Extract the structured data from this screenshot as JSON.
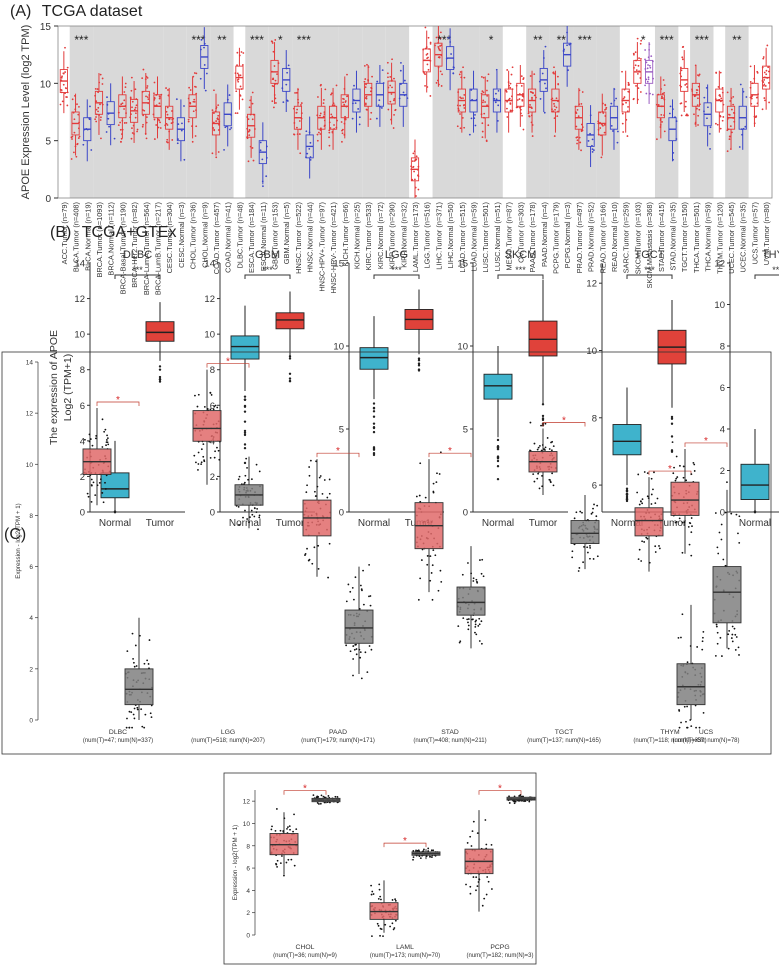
{
  "panels": {
    "A": {
      "letter": "(A)",
      "title": "TCGA dataset"
    },
    "B": {
      "letter": "(B)",
      "title": "TCGA+GTEx"
    },
    "C": {
      "letter": "(C)"
    }
  },
  "colors": {
    "tumor_red": "#e23b3b",
    "normal_blue": "#3b46c8",
    "metastasis_purple": "#9a5cc2",
    "gtex_tumor": "#e0423a",
    "gtex_normal": "#3fb3cc",
    "gepia_tumor": "#e06a6a",
    "gepia_normal": "#808080",
    "shade": "#d9d9d9"
  },
  "chart_data": [
    {
      "type": "box",
      "panel": "A",
      "ylabel": "APOE Expression Level (log2 TPM)",
      "ylim": [
        0,
        15
      ],
      "yticks": [
        0,
        5,
        10,
        15
      ],
      "categories": [
        {
          "label": "ACC.Tumor (n=79)",
          "kind": "T",
          "median": 10.2
        },
        {
          "label": "BLCA.Tumor (n=408)",
          "kind": "T",
          "median": 6.5,
          "sig": "***"
        },
        {
          "label": "BLCA.Normal (n=19)",
          "kind": "N",
          "median": 6.0
        },
        {
          "label": "BRCA.Tumor (n=1093)",
          "kind": "T",
          "median": 8.3
        },
        {
          "label": "BRCA.Normal (n=112)",
          "kind": "N",
          "median": 7.4
        },
        {
          "label": "BRCA-Basal.Tumor (n=190)",
          "kind": "T",
          "median": 8.0
        },
        {
          "label": "BRCA-Her2.Tumor (n=82)",
          "kind": "T",
          "median": 7.6
        },
        {
          "label": "BRCA-LumA.Tumor (n=564)",
          "kind": "T",
          "median": 8.3
        },
        {
          "label": "BRCA-LumB.Tumor (n=217)",
          "kind": "T",
          "median": 8.0
        },
        {
          "label": "CESC.Tumor (n=304)",
          "kind": "T",
          "median": 7.0
        },
        {
          "label": "CESC.Normal (n=3)",
          "kind": "N",
          "median": 6.0
        },
        {
          "label": "CHOL.Tumor (n=36)",
          "kind": "T",
          "median": 8.0,
          "sig": "***"
        },
        {
          "label": "CHOL.Normal (n=9)",
          "kind": "N",
          "median": 12.3
        },
        {
          "label": "COAD.Tumor (n=457)",
          "kind": "T",
          "median": 6.5,
          "sig": "**"
        },
        {
          "label": "COAD.Normal (n=41)",
          "kind": "N",
          "median": 7.3
        },
        {
          "label": "DLBC.Tumor (n=48)",
          "kind": "T",
          "median": 10.5
        },
        {
          "label": "ESCA.Tumor (n=184)",
          "kind": "T",
          "median": 6.3,
          "sig": "***"
        },
        {
          "label": "ESCA.Normal (n=11)",
          "kind": "N",
          "median": 4.0
        },
        {
          "label": "GBM.Tumor (n=153)",
          "kind": "T",
          "median": 11.0,
          "sig": "*"
        },
        {
          "label": "GBM.Normal (n=5)",
          "kind": "N",
          "median": 10.3
        },
        {
          "label": "HNSC.Tumor (n=522)",
          "kind": "T",
          "median": 7.0,
          "sig": "***"
        },
        {
          "label": "HNSC.Normal (n=44)",
          "kind": "N",
          "median": 4.5
        },
        {
          "label": "HNSC-HPV+.Tumor (n=97)",
          "kind": "T",
          "median": 7.0
        },
        {
          "label": "HNSC-HPV-.Tumor (n=421)",
          "kind": "T",
          "median": 7.0
        },
        {
          "label": "KICH.Tumor (n=66)",
          "kind": "T",
          "median": 8.0
        },
        {
          "label": "KICH.Normal (n=25)",
          "kind": "N",
          "median": 8.5
        },
        {
          "label": "KIRC.Tumor (n=533)",
          "kind": "T",
          "median": 9.0
        },
        {
          "label": "KIRC.Normal (n=72)",
          "kind": "N",
          "median": 9.0
        },
        {
          "label": "KIRP.Tumor (n=290)",
          "kind": "T",
          "median": 9.2
        },
        {
          "label": "KIRP.Normal (n=32)",
          "kind": "N",
          "median": 9.0
        },
        {
          "label": "LAML.Tumor (n=173)",
          "kind": "T",
          "median": 2.5
        },
        {
          "label": "LGG.Tumor (n=516)",
          "kind": "T",
          "median": 12.0
        },
        {
          "label": "LIHC.Tumor (n=371)",
          "kind": "T",
          "median": 12.5,
          "sig": "***"
        },
        {
          "label": "LIHC.Normal (n=50)",
          "kind": "N",
          "median": 12.2
        },
        {
          "label": "LUAD.Tumor (n=515)",
          "kind": "T",
          "median": 8.5
        },
        {
          "label": "LUAD.Normal (n=59)",
          "kind": "N",
          "median": 8.5
        },
        {
          "label": "LUSC.Tumor (n=501)",
          "kind": "T",
          "median": 8.0,
          "sig": "*"
        },
        {
          "label": "LUSC.Normal (n=51)",
          "kind": "N",
          "median": 8.5
        },
        {
          "label": "MESO.Tumor (n=87)",
          "kind": "T",
          "median": 8.5
        },
        {
          "label": "OV.Tumor (n=303)",
          "kind": "T",
          "median": 9.0
        },
        {
          "label": "PAAD.Tumor (n=178)",
          "kind": "T",
          "median": 8.5,
          "sig": "**"
        },
        {
          "label": "PAAD.Normal (n=4)",
          "kind": "N",
          "median": 10.3
        },
        {
          "label": "PCPG.Tumor (n=179)",
          "kind": "T",
          "median": 8.5,
          "sig": "**"
        },
        {
          "label": "PCPG.Normal (n=3)",
          "kind": "N",
          "median": 12.5
        },
        {
          "label": "PRAD.Tumor (n=497)",
          "kind": "T",
          "median": 7.0,
          "sig": "***"
        },
        {
          "label": "PRAD.Normal (n=52)",
          "kind": "N",
          "median": 5.5
        },
        {
          "label": "READ.Tumor (n=166)",
          "kind": "T",
          "median": 6.5
        },
        {
          "label": "READ.Normal (n=10)",
          "kind": "N",
          "median": 7.0
        },
        {
          "label": "SARC.Tumor (n=259)",
          "kind": "T",
          "median": 8.5
        },
        {
          "label": "SKCM.Tumor (n=103)",
          "kind": "T",
          "median": 11.0,
          "sig": "*"
        },
        {
          "label": "SKCM.Metastasis (n=368)",
          "kind": "M",
          "median": 11.0
        },
        {
          "label": "STAD.Tumor (n=415)",
          "kind": "T",
          "median": 8.0,
          "sig": "***"
        },
        {
          "label": "STAD.Normal (n=35)",
          "kind": "N",
          "median": 6.0
        },
        {
          "label": "TGCT.Tumor (n=150)",
          "kind": "T",
          "median": 10.3
        },
        {
          "label": "THCA.Tumor (n=501)",
          "kind": "T",
          "median": 9.0,
          "sig": "***"
        },
        {
          "label": "THCA.Normal (n=59)",
          "kind": "N",
          "median": 7.3
        },
        {
          "label": "THYM.Tumor (n=120)",
          "kind": "T",
          "median": 8.5
        },
        {
          "label": "UCEC.Tumor (n=545)",
          "kind": "T",
          "median": 7.0,
          "sig": "**"
        },
        {
          "label": "UCEC.Normal (n=35)",
          "kind": "N",
          "median": 7.0
        },
        {
          "label": "UCS.Tumor (n=57)",
          "kind": "T",
          "median": 9.0
        },
        {
          "label": "UVM.Tumor (n=80)",
          "kind": "T",
          "median": 10.5
        }
      ]
    },
    {
      "type": "box",
      "panel": "B",
      "ylabel_line1": "The expression of APOE",
      "ylabel_line2": "Log2 (TPM+1)",
      "groups": [
        "Normal",
        "Tumor"
      ],
      "subplots": [
        {
          "title": "DLBC",
          "ylim": [
            0,
            14
          ],
          "yticks": [
            0,
            2,
            4,
            6,
            8,
            10,
            12,
            14
          ],
          "sig": "***",
          "normal": {
            "q1": 0.8,
            "median": 1.3,
            "q3": 2.2,
            "whisker_low": 0,
            "whisker_high": 4.0
          },
          "tumor": {
            "q1": 9.6,
            "median": 10.1,
            "q3": 10.7,
            "whisker_low": 8.5,
            "whisker_high": 11.8
          }
        },
        {
          "title": "GBM",
          "ylim": [
            0,
            14
          ],
          "yticks": [
            0,
            2,
            4,
            6,
            8,
            10,
            12,
            14
          ],
          "sig": "***",
          "normal": {
            "q1": 8.6,
            "median": 9.3,
            "q3": 9.9,
            "whisker_low": 6.8,
            "whisker_high": 11.6
          },
          "tumor": {
            "q1": 10.3,
            "median": 10.8,
            "q3": 11.2,
            "whisker_low": 8.8,
            "whisker_high": 12.4
          }
        },
        {
          "title": "LGG",
          "ylim": [
            0,
            15
          ],
          "yticks": [
            0,
            5,
            10,
            15
          ],
          "sig": "***",
          "normal": {
            "q1": 8.6,
            "median": 9.3,
            "q3": 9.9,
            "whisker_low": 6.8,
            "whisker_high": 11.8
          },
          "tumor": {
            "q1": 11.0,
            "median": 11.6,
            "q3": 12.2,
            "whisker_low": 9.5,
            "whisker_high": 13.4
          }
        },
        {
          "title": "SKCM",
          "ylim": [
            0,
            15
          ],
          "yticks": [
            0,
            5,
            10,
            15
          ],
          "sig": "***",
          "normal": {
            "q1": 6.8,
            "median": 7.6,
            "q3": 8.3,
            "whisker_low": 4.5,
            "whisker_high": 10.0
          },
          "tumor": {
            "q1": 9.4,
            "median": 10.4,
            "q3": 11.5,
            "whisker_low": 6.5,
            "whisker_high": 14.0
          }
        },
        {
          "title": "TGCT",
          "ylim": [
            5.2,
            12.6
          ],
          "yticks": [
            6,
            8,
            10,
            12
          ],
          "sig": "***",
          "normal": {
            "q1": 6.9,
            "median": 7.3,
            "q3": 7.8,
            "whisker_low": 6.0,
            "whisker_high": 8.9
          },
          "tumor": {
            "q1": 9.6,
            "median": 10.1,
            "q3": 10.6,
            "whisker_low": 8.3,
            "whisker_high": 11.5
          }
        },
        {
          "title": "THYM",
          "ylim": [
            0,
            12
          ],
          "yticks": [
            0,
            2,
            4,
            6,
            8,
            10,
            12
          ],
          "sig": "***",
          "normal": {
            "q1": 0.6,
            "median": 1.3,
            "q3": 2.3,
            "whisker_low": 0,
            "whisker_high": 4.0
          },
          "tumor": {
            "q1": 7.2,
            "median": 7.8,
            "q3": 8.5,
            "whisker_low": 5.5,
            "whisker_high": 10.0
          }
        }
      ]
    },
    {
      "type": "box",
      "panel": "C-top",
      "ylabel": "Expression - log2(TPM + 1)",
      "ylim": [
        0,
        14
      ],
      "yticks": [
        0,
        2,
        4,
        6,
        8,
        10,
        12,
        14
      ],
      "sig": "*",
      "groups": [
        {
          "name": "DLBC",
          "counts": "(num(T)=47; num(N)=337)",
          "tumor": {
            "q1": 9.6,
            "median": 10.1,
            "q3": 10.6,
            "whisker_low": 8.4,
            "whisker_high": 12.2
          },
          "normal": {
            "q1": 0.6,
            "median": 1.2,
            "q3": 2.0,
            "whisker_low": 0,
            "whisker_high": 4.0
          }
        },
        {
          "name": "LGG",
          "counts": "(num(T)=518; num(N)=207)",
          "tumor": {
            "q1": 10.9,
            "median": 11.4,
            "q3": 12.1,
            "whisker_low": 9.2,
            "whisker_high": 13.7
          },
          "normal": {
            "q1": 8.4,
            "median": 8.8,
            "q3": 9.2,
            "whisker_low": 7.5,
            "whisker_high": 10.3
          }
        },
        {
          "name": "PAAD",
          "counts": "(num(T)=179; num(N)=171)",
          "tumor": {
            "q1": 7.2,
            "median": 7.9,
            "q3": 8.6,
            "whisker_low": 5.6,
            "whisker_high": 10.2
          },
          "normal": {
            "q1": 3.0,
            "median": 3.6,
            "q3": 4.3,
            "whisker_low": 1.8,
            "whisker_high": 6.0
          }
        },
        {
          "name": "STAD",
          "counts": "(num(T)=408; num(N)=211)",
          "tumor": {
            "q1": 6.7,
            "median": 7.6,
            "q3": 8.5,
            "whisker_low": 5.0,
            "whisker_high": 10.2
          },
          "normal": {
            "q1": 4.1,
            "median": 4.6,
            "q3": 5.2,
            "whisker_low": 2.8,
            "whisker_high": 6.8
          }
        },
        {
          "name": "TGCT",
          "counts": "(num(T)=137; num(N)=165)",
          "tumor": {
            "q1": 9.7,
            "median": 10.1,
            "q3": 10.5,
            "whisker_low": 8.8,
            "whisker_high": 11.4
          },
          "normal": {
            "q1": 6.9,
            "median": 7.3,
            "q3": 7.8,
            "whisker_low": 5.9,
            "whisker_high": 8.8
          }
        },
        {
          "name": "THYM",
          "counts": "(num(T)=118; num(N)=339)",
          "tumor": {
            "q1": 7.2,
            "median": 7.8,
            "q3": 8.3,
            "whisker_low": 5.8,
            "whisker_high": 9.5
          },
          "normal": {
            "q1": 0.6,
            "median": 1.3,
            "q3": 2.2,
            "whisker_low": 0,
            "whisker_high": 4.5
          }
        },
        {
          "name": "UCS",
          "counts": "(num(T)=57; num(N)=78)",
          "tumor": {
            "q1": 8.0,
            "median": 8.6,
            "q3": 9.3,
            "whisker_low": 6.5,
            "whisker_high": 10.6
          },
          "normal": {
            "q1": 3.8,
            "median": 5.0,
            "q3": 6.0,
            "whisker_low": 2.8,
            "whisker_high": 9.0
          }
        }
      ]
    },
    {
      "type": "box",
      "panel": "C-bottom",
      "ylabel": "Expression - log2(TPM + 1)",
      "ylim": [
        0,
        13
      ],
      "yticks": [
        0,
        2,
        4,
        6,
        8,
        10,
        12
      ],
      "sig": "*",
      "groups": [
        {
          "name": "CHOL",
          "counts": "(num(T)=36; num(N)=9)",
          "tumor": {
            "q1": 7.2,
            "median": 8.1,
            "q3": 9.1,
            "whisker_low": 5.4,
            "whisker_high": 11.0
          },
          "normal": {
            "q1": 11.95,
            "median": 12.1,
            "q3": 12.25,
            "whisker_low": 11.8,
            "whisker_high": 12.4
          }
        },
        {
          "name": "LAML",
          "counts": "(num(T)=173; num(N)=70)",
          "tumor": {
            "q1": 1.4,
            "median": 2.1,
            "q3": 2.9,
            "whisker_low": 0.2,
            "whisker_high": 4.9
          },
          "normal": {
            "q1": 7.15,
            "median": 7.3,
            "q3": 7.45,
            "whisker_low": 6.8,
            "whisker_high": 7.7
          }
        },
        {
          "name": "PCPG",
          "counts": "(num(T)=182; num(N)=3)",
          "tumor": {
            "q1": 5.5,
            "median": 6.6,
            "q3": 7.7,
            "whisker_low": 2.1,
            "whisker_high": 11.2
          },
          "normal": {
            "q1": 12.1,
            "median": 12.2,
            "q3": 12.35,
            "whisker_low": 12.0,
            "whisker_high": 12.4
          }
        }
      ]
    }
  ]
}
